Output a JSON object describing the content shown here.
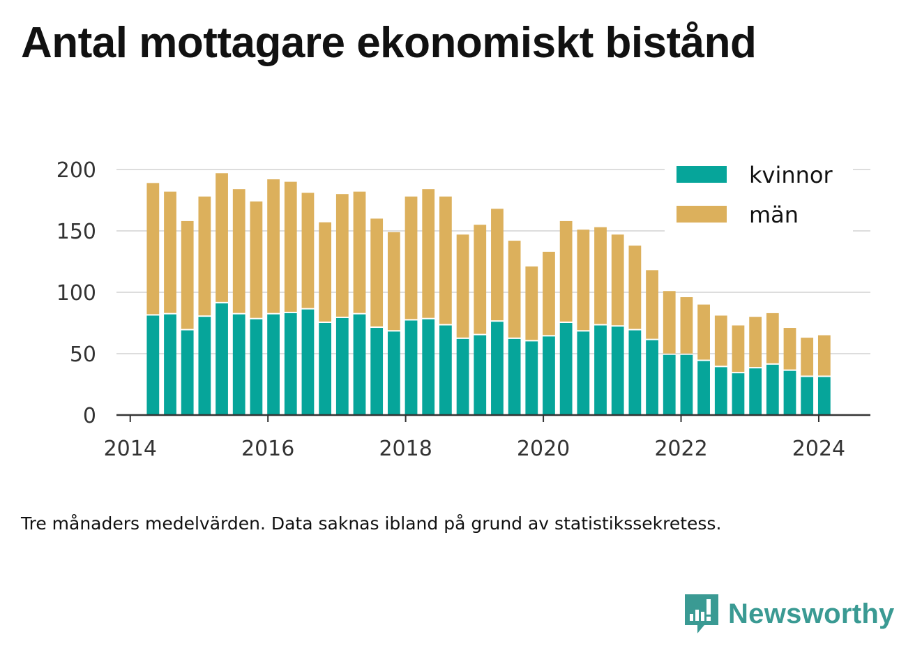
{
  "title": "Antal mottagare ekonomiskt bistånd",
  "note": "Tre månaders medelvärden. Data saknas ibland på grund av statistikssekretess.",
  "brand": {
    "name": "Newsworthy",
    "icon": "newsworthy-logo-icon",
    "color": "#3a9a93"
  },
  "chart_data": {
    "type": "bar",
    "stacked": true,
    "x_unit": "year (quarterly periods)",
    "x": [
      2014.33,
      2014.58,
      2014.83,
      2015.08,
      2015.33,
      2015.58,
      2015.83,
      2016.08,
      2016.33,
      2016.58,
      2016.83,
      2017.08,
      2017.33,
      2017.58,
      2017.83,
      2018.08,
      2018.33,
      2018.58,
      2018.83,
      2019.08,
      2019.33,
      2019.58,
      2019.83,
      2020.08,
      2020.33,
      2020.58,
      2020.83,
      2021.08,
      2021.33,
      2021.58,
      2021.83,
      2022.08,
      2022.33,
      2022.58,
      2022.83,
      2023.08,
      2023.33,
      2023.58,
      2023.83,
      2024.08
    ],
    "series": [
      {
        "name": "kvinnor",
        "color": "#06a59a",
        "values": [
          81,
          82,
          69,
          80,
          91,
          82,
          78,
          82,
          83,
          86,
          75,
          79,
          82,
          71,
          68,
          77,
          78,
          73,
          62,
          65,
          76,
          62,
          60,
          64,
          75,
          68,
          73,
          72,
          69,
          61,
          49,
          49,
          44,
          39,
          34,
          38,
          41,
          36,
          31,
          31
        ]
      },
      {
        "name": "män",
        "color": "#dcb05c",
        "values": [
          108,
          100,
          89,
          98,
          106,
          102,
          96,
          110,
          107,
          95,
          82,
          101,
          100,
          89,
          81,
          101,
          106,
          105,
          85,
          90,
          92,
          80,
          61,
          69,
          83,
          83,
          80,
          75,
          69,
          57,
          52,
          47,
          46,
          42,
          39,
          42,
          42,
          35,
          32,
          34
        ]
      }
    ],
    "xlim": [
      2013.8,
      2024.75
    ],
    "ylim": [
      0,
      200
    ],
    "xticks": [
      2014,
      2016,
      2018,
      2020,
      2022,
      2024
    ],
    "yticks": [
      0,
      50,
      100,
      150,
      200
    ],
    "grid": "horizontal",
    "legend_position": "top-right",
    "xlabel": "",
    "ylabel": ""
  }
}
